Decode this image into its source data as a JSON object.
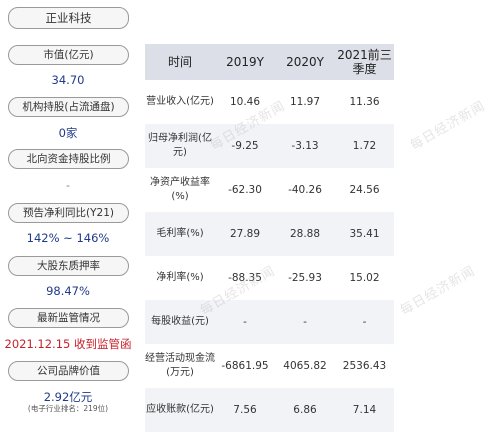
{
  "left": {
    "company_name": "正业科技",
    "items": [
      {
        "label": "市值(亿元)",
        "value": "34.70"
      },
      {
        "label": "机构持股(占流通盘)",
        "value": "0家"
      },
      {
        "label": "北向资金持股比例",
        "value": "-"
      },
      {
        "label": "预告净利同比(Y21)",
        "value": "142% ~ 146%"
      },
      {
        "label": "大股东质押率",
        "value": "98.47%"
      },
      {
        "label": "最新监管情况",
        "value": "2021.12.15 收到监管函"
      },
      {
        "label": "公司品牌价值",
        "value": "2.92亿元",
        "note": "(电子行业排名：219位)"
      }
    ]
  },
  "table": {
    "headers": [
      "时间",
      "2019Y",
      "2020Y",
      "2021前三季度"
    ],
    "rows": [
      {
        "label": "营业收入(亿元)",
        "v": [
          "10.46",
          "11.97",
          "11.36"
        ]
      },
      {
        "label": "归母净利润(亿元)",
        "v": [
          "-9.25",
          "-3.13",
          "1.72"
        ]
      },
      {
        "label": "净资产收益率(%)",
        "v": [
          "-62.30",
          "-40.26",
          "24.56"
        ]
      },
      {
        "label": "毛利率(%)",
        "v": [
          "27.89",
          "28.88",
          "35.41"
        ]
      },
      {
        "label": "净利率(%)",
        "v": [
          "-88.35",
          "-25.93",
          "15.02"
        ]
      },
      {
        "label": "每股收益(元)",
        "v": [
          "-",
          "-",
          "-"
        ]
      },
      {
        "label": "经营活动现金流(万元)",
        "v": [
          "-6861.95",
          "4065.82",
          "2536.43"
        ]
      },
      {
        "label": "应收账款(亿元)",
        "v": [
          "7.56",
          "6.86",
          "7.14"
        ]
      }
    ]
  },
  "watermark": "每日经济新闻"
}
